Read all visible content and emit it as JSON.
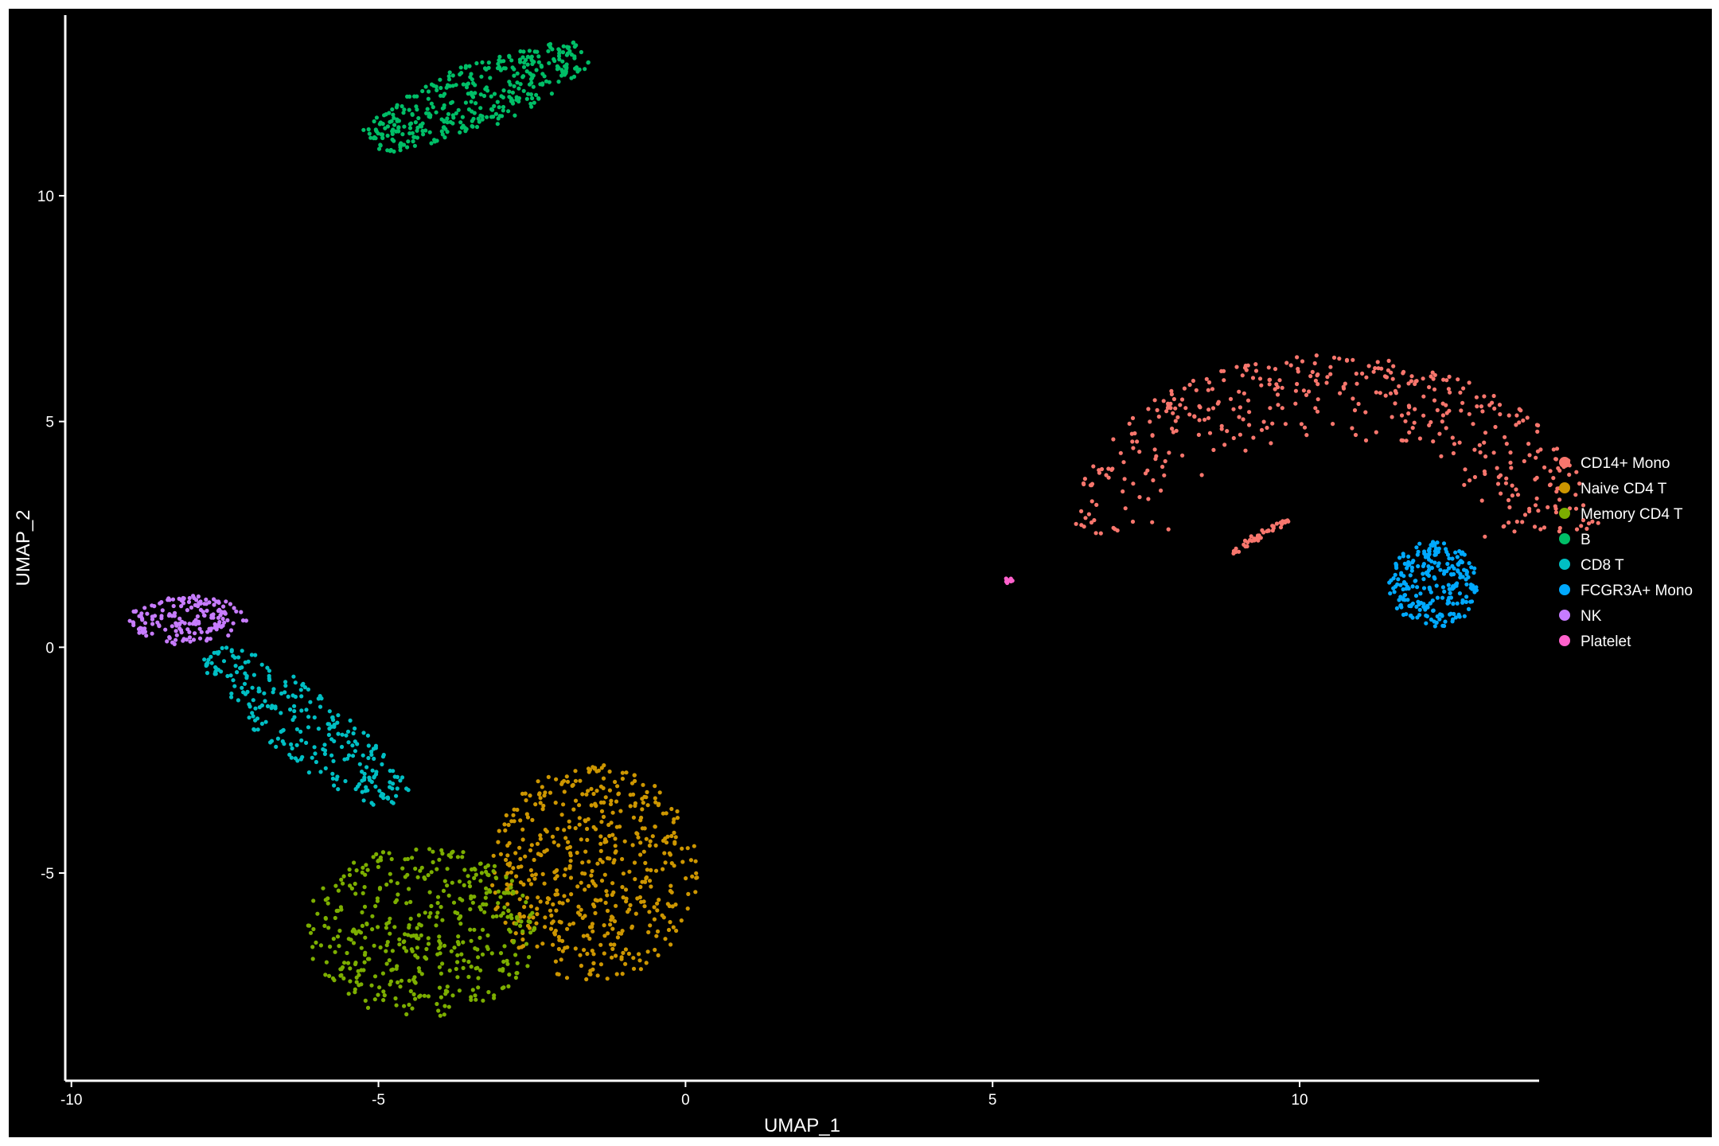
{
  "chart_data": {
    "type": "scatter",
    "xlabel": "UMAP_1",
    "ylabel": "UMAP_2",
    "xlim": [
      -10.1,
      13.9
    ],
    "ylim": [
      -9.6,
      14.0
    ],
    "x_ticks": [
      -10,
      -5,
      0,
      5,
      10
    ],
    "x_tick_labels": [
      "-10",
      "-5",
      "0",
      "5",
      "10"
    ],
    "y_ticks": [
      -5,
      0,
      5,
      10
    ],
    "y_tick_labels": [
      "-5",
      "0",
      "5",
      "10"
    ],
    "grid": false,
    "legend_position": "right",
    "background": "#000000",
    "series": [
      {
        "name": "CD14+ Mono",
        "color": "#F8766D",
        "clusters": [
          {
            "x": [
              8.0,
              13.0
            ],
            "y": [
              2.5,
              6.8
            ],
            "shape": "arc",
            "cx": 10.5,
            "cy": 2.3,
            "r_inner": 2.4,
            "r_outer": 4.4,
            "n": 420
          },
          {
            "shape": "line",
            "x0": 8.9,
            "y0": 2.1,
            "x1": 9.8,
            "y1": 2.8,
            "n": 40
          }
        ]
      },
      {
        "name": "Naive CD4 T",
        "color": "#CD9600",
        "clusters": [
          {
            "x": [
              -3.7,
              0.0
            ],
            "y": [
              -7.6,
              -2.2
            ],
            "shape": "blob",
            "cx": -1.5,
            "cy": -5.0,
            "rx": 1.7,
            "ry": 2.4,
            "n": 520
          }
        ]
      },
      {
        "name": "Memory CD4 T",
        "color": "#7CAE00",
        "clusters": [
          {
            "x": [
              -6.2,
              -2.5
            ],
            "y": [
              -8.6,
              -3.8
            ],
            "shape": "blob",
            "cx": -4.3,
            "cy": -6.3,
            "rx": 1.9,
            "ry": 1.9,
            "n": 440
          }
        ]
      },
      {
        "name": "B",
        "color": "#00BE67",
        "clusters": [
          {
            "shape": "band",
            "x0": -5.1,
            "y0": 11.2,
            "x1": -1.7,
            "y1": 13.2,
            "width": 1.4,
            "n": 380
          }
        ]
      },
      {
        "name": "CD8 T",
        "color": "#00BFC4",
        "clusters": [
          {
            "shape": "band",
            "x0": -7.7,
            "y0": -0.1,
            "x1": -4.7,
            "y1": -3.4,
            "width": 1.4,
            "n": 260
          }
        ]
      },
      {
        "name": "FCGR3A+ Mono",
        "color": "#00A9FF",
        "clusters": [
          {
            "x": [
              11.2,
              12.8
            ],
            "y": [
              0.5,
              2.7
            ],
            "shape": "blob",
            "cx": 12.2,
            "cy": 1.4,
            "rx": 0.75,
            "ry": 0.95,
            "n": 240
          }
        ]
      },
      {
        "name": "NK",
        "color": "#C77CFF",
        "clusters": [
          {
            "x": [
              -9.0,
              -7.0
            ],
            "y": [
              -0.3,
              1.3
            ],
            "shape": "blob",
            "cx": -8.1,
            "cy": 0.6,
            "rx": 0.95,
            "ry": 0.55,
            "n": 170
          }
        ]
      },
      {
        "name": "Platelet",
        "color": "#FF61CC",
        "clusters": [
          {
            "x": [
              5.15,
              5.35
            ],
            "y": [
              1.38,
              1.58
            ],
            "shape": "blob",
            "cx": 5.25,
            "cy": 1.48,
            "rx": 0.08,
            "ry": 0.06,
            "n": 12
          }
        ]
      }
    ]
  }
}
